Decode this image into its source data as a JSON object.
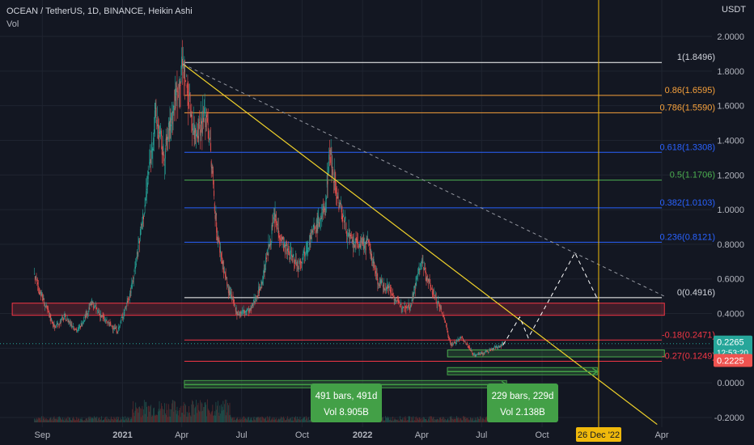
{
  "header": {
    "symbol_line": "OCEAN / TetherUS, 1D, BINANCE, Heikin Ashi",
    "volume_label": "Vol",
    "currency": "USDT"
  },
  "colors": {
    "background": "#131722",
    "up": "#26a69a",
    "down": "#ef5350",
    "fib_1": "#ffffff",
    "fib_0_86": "#f7a13b",
    "fib_0_786": "#f7a13b",
    "fib_0_618": "#2962ff",
    "fib_0_5": "#4caf50",
    "fib_0_382": "#2962ff",
    "fib_0_236": "#2962ff",
    "fib_0": "#ffffff",
    "fib_neg": "#f23645",
    "trendline": "#f0d22a",
    "dashed_trend": "#9598a1",
    "projection": "#ffffff",
    "date_line": "#f0b90b",
    "zone_red": "#f23645",
    "zone_green": "#4caf50",
    "range_green": "#43a047"
  },
  "chart_data": {
    "type": "candlestick",
    "title": "OCEAN / TetherUS, 1D, BINANCE, Heikin Ashi",
    "ylabel": "USDT",
    "ylim": [
      -0.22,
      2.15
    ],
    "y_ticks": [
      "2.0000",
      "1.8000",
      "1.6000",
      "1.4000",
      "1.2000",
      "1.0000",
      "0.8000",
      "0.6000",
      "0.4000",
      "0.2000",
      "0.0000",
      "-0.2000"
    ],
    "x_ticks": [
      "Sep",
      "2021",
      "Apr",
      "Jul",
      "Oct",
      "2022",
      "Apr",
      "Jul",
      "Oct",
      "Apr"
    ],
    "price_path": [
      [
        "2020-08-20",
        0.62
      ],
      [
        "2020-09-05",
        0.45
      ],
      [
        "2020-09-20",
        0.32
      ],
      [
        "2020-10-05",
        0.38
      ],
      [
        "2020-10-25",
        0.3
      ],
      [
        "2020-11-15",
        0.46
      ],
      [
        "2020-12-05",
        0.36
      ],
      [
        "2020-12-25",
        0.3
      ],
      [
        "2021-01-15",
        0.55
      ],
      [
        "2021-02-05",
        1.05
      ],
      [
        "2021-02-20",
        1.55
      ],
      [
        "2021-03-05",
        1.3
      ],
      [
        "2021-03-20",
        1.6
      ],
      [
        "2021-04-03",
        1.84
      ],
      [
        "2021-04-20",
        1.45
      ],
      [
        "2021-05-10",
        1.55
      ],
      [
        "2021-05-25",
        0.85
      ],
      [
        "2021-06-10",
        0.55
      ],
      [
        "2021-06-25",
        0.4
      ],
      [
        "2021-07-15",
        0.42
      ],
      [
        "2021-08-01",
        0.58
      ],
      [
        "2021-08-20",
        0.95
      ],
      [
        "2021-09-05",
        0.78
      ],
      [
        "2021-09-25",
        0.68
      ],
      [
        "2021-10-15",
        0.85
      ],
      [
        "2021-11-05",
        1.0
      ],
      [
        "2021-11-12",
        1.35
      ],
      [
        "2021-11-25",
        1.05
      ],
      [
        "2021-12-15",
        0.8
      ],
      [
        "2022-01-10",
        0.8
      ],
      [
        "2022-01-25",
        0.58
      ],
      [
        "2022-02-10",
        0.55
      ],
      [
        "2022-02-25",
        0.45
      ],
      [
        "2022-03-15",
        0.45
      ],
      [
        "2022-03-31",
        0.7
      ],
      [
        "2022-04-15",
        0.55
      ],
      [
        "2022-05-05",
        0.38
      ],
      [
        "2022-05-15",
        0.22
      ],
      [
        "2022-06-01",
        0.26
      ],
      [
        "2022-06-20",
        0.16
      ],
      [
        "2022-07-10",
        0.18
      ],
      [
        "2022-08-03",
        0.2265
      ]
    ],
    "last_price": "0.2265",
    "countdown": "12:53:20",
    "other_price_label": "0.2225",
    "fib_levels": [
      {
        "label": "1(1.8496)",
        "value": 1.8496
      },
      {
        "label": "0.86(1.6595)",
        "value": 1.6595
      },
      {
        "label": "0.786(1.5590)",
        "value": 1.559
      },
      {
        "label": "0.618(1.3308)",
        "value": 1.3308
      },
      {
        "label": "0.5(1.1706)",
        "value": 1.1706
      },
      {
        "label": "0.382(1.0103)",
        "value": 1.0103
      },
      {
        "label": "0.236(0.8121)",
        "value": 0.8121
      },
      {
        "label": "0(0.4916)",
        "value": 0.4916
      },
      {
        "label": "-0.18(0.2471)",
        "value": 0.2471
      },
      {
        "label": "-0.27(0.1249)",
        "value": 0.1249
      }
    ],
    "fib_start_date": "2021-04-05",
    "fib_end_date": "2023-04-05",
    "zones": [
      {
        "kind": "resistance",
        "from_date": "2020-08-01",
        "to_date": "2023-04-05",
        "low": 0.39,
        "high": 0.46
      },
      {
        "kind": "support",
        "from_date": "2022-05-25",
        "to_date": "2023-04-05",
        "low": 0.15,
        "high": 0.19
      }
    ],
    "trendline": {
      "from": [
        "2021-04-03",
        1.84
      ],
      "to": [
        "2023-03-25",
        -0.24
      ]
    },
    "dashed_trendline": {
      "from": [
        "2021-04-03",
        1.84
      ],
      "to": [
        "2023-04-05",
        0.5
      ]
    },
    "projection_path": [
      [
        "2022-08-03",
        0.22
      ],
      [
        "2022-08-28",
        0.38
      ],
      [
        "2022-09-10",
        0.26
      ],
      [
        "2022-11-20",
        0.75
      ],
      [
        "2022-12-26",
        0.47
      ]
    ],
    "vertical_marker": {
      "date": "2022-12-26",
      "label": "26 Dec '22"
    },
    "ranges": [
      {
        "from_date": "2021-04-05",
        "to_date": "2022-08-08",
        "y": -0.01,
        "line1": "491 bars, 491d",
        "line2": "Vol 8.905B"
      },
      {
        "from_date": "2022-05-10",
        "to_date": "2022-12-24",
        "y": 0.065,
        "line1": "229 bars, 229d",
        "line2": "Vol 2.138B"
      }
    ]
  }
}
